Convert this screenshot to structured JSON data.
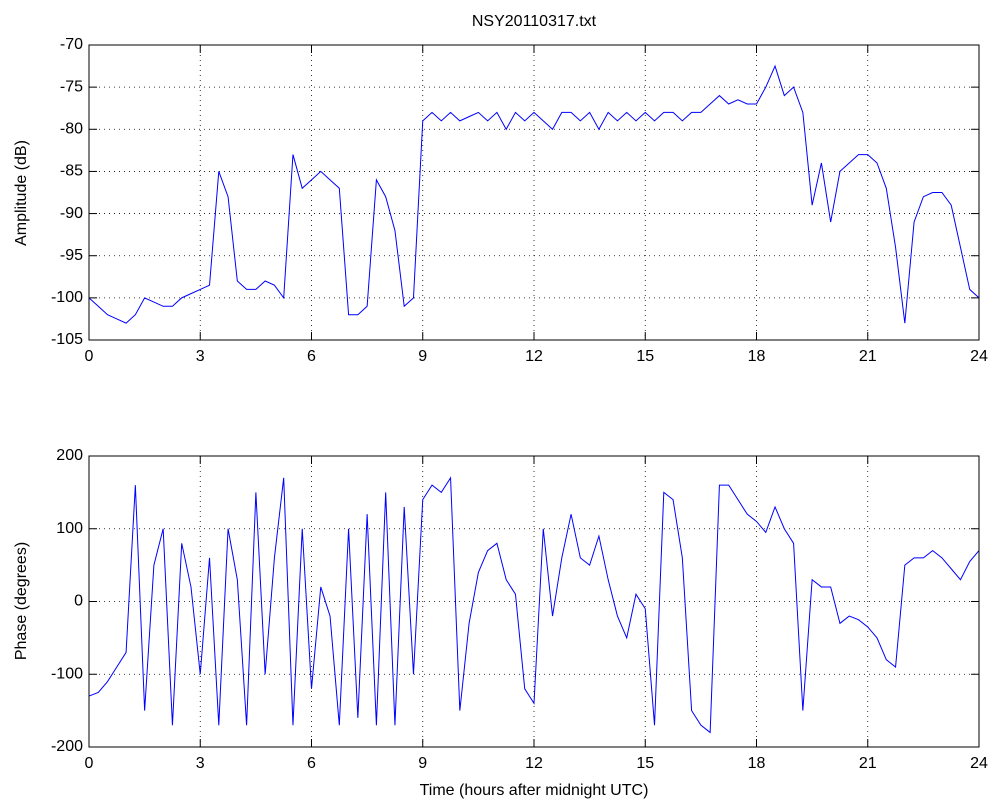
{
  "chart_data": [
    {
      "type": "line",
      "title": "NSY20110317.txt",
      "ylabel": "Amplitude (dB)",
      "x": [
        0,
        0.25,
        0.5,
        0.75,
        1,
        1.25,
        1.5,
        1.75,
        2,
        2.25,
        2.5,
        2.75,
        3,
        3.25,
        3.5,
        3.75,
        4,
        4.25,
        4.5,
        4.75,
        5,
        5.25,
        5.5,
        5.75,
        6,
        6.25,
        6.5,
        6.75,
        7,
        7.25,
        7.5,
        7.75,
        8,
        8.25,
        8.5,
        8.75,
        9,
        9.25,
        9.5,
        9.75,
        10,
        10.25,
        10.5,
        10.75,
        11,
        11.25,
        11.5,
        11.75,
        12,
        12.25,
        12.5,
        12.75,
        13,
        13.25,
        13.5,
        13.75,
        14,
        14.25,
        14.5,
        14.75,
        15,
        15.25,
        15.5,
        15.75,
        16,
        16.25,
        16.5,
        16.75,
        17,
        17.25,
        17.5,
        17.75,
        18,
        18.25,
        18.5,
        18.75,
        19,
        19.25,
        19.5,
        19.75,
        20,
        20.25,
        20.5,
        20.75,
        21,
        21.25,
        21.5,
        21.75,
        22,
        22.25,
        22.5,
        22.75,
        23,
        23.25,
        23.5,
        23.75,
        24
      ],
      "values": [
        -100,
        -101,
        -102,
        -102.5,
        -103,
        -102,
        -100,
        -100.5,
        -101,
        -101,
        -100,
        -99.5,
        -99,
        -98.5,
        -85,
        -88,
        -98,
        -99,
        -99,
        -98,
        -98.5,
        -100,
        -83,
        -87,
        -86,
        -85,
        -86,
        -87,
        -102,
        -102,
        -101,
        -86,
        -88,
        -92,
        -101,
        -100,
        -79,
        -78,
        -79,
        -78,
        -79,
        -78.5,
        -78,
        -79,
        -78,
        -80,
        -78,
        -79,
        -78,
        -79,
        -80,
        -78,
        -78,
        -79,
        -78,
        -80,
        -78,
        -79,
        -78,
        -79,
        -78,
        -79,
        -78,
        -78,
        -79,
        -78,
        -78,
        -77,
        -76,
        -77,
        -76.5,
        -77,
        -77,
        -75,
        -72.5,
        -76,
        -75,
        -78,
        -89,
        -84,
        -91,
        -85,
        -84,
        -83,
        -83,
        -84,
        -87,
        -94,
        -103,
        -91,
        -88,
        -87.5,
        -87.5,
        -89,
        -94,
        -99,
        -100
      ],
      "color": "#0000ff",
      "xlim": [
        0,
        24
      ],
      "xticks": [
        0,
        3,
        6,
        9,
        12,
        15,
        18,
        21,
        24
      ],
      "ylim": [
        -105,
        -70
      ],
      "yticks": [
        -105,
        -100,
        -95,
        -90,
        -85,
        -80,
        -75,
        -70
      ],
      "grid": true
    },
    {
      "type": "line",
      "xlabel": "Time (hours after midnight UTC)",
      "ylabel": "Phase (degrees)",
      "x": [
        0,
        0.25,
        0.5,
        0.75,
        1,
        1.25,
        1.5,
        1.75,
        2,
        2.25,
        2.5,
        2.75,
        3,
        3.25,
        3.5,
        3.75,
        4,
        4.25,
        4.5,
        4.75,
        5,
        5.25,
        5.5,
        5.75,
        6,
        6.25,
        6.5,
        6.75,
        7,
        7.25,
        7.5,
        7.75,
        8,
        8.25,
        8.5,
        8.75,
        9,
        9.25,
        9.5,
        9.75,
        10,
        10.25,
        10.5,
        10.75,
        11,
        11.25,
        11.5,
        11.75,
        12,
        12.25,
        12.5,
        12.75,
        13,
        13.25,
        13.5,
        13.75,
        14,
        14.25,
        14.5,
        14.75,
        15,
        15.25,
        15.5,
        15.75,
        16,
        16.25,
        16.5,
        16.75,
        17,
        17.25,
        17.5,
        17.75,
        18,
        18.25,
        18.5,
        18.75,
        19,
        19.25,
        19.5,
        19.75,
        20,
        20.25,
        20.5,
        20.75,
        21,
        21.25,
        21.5,
        21.75,
        22,
        22.25,
        22.5,
        22.75,
        23,
        23.25,
        23.5,
        23.75,
        24
      ],
      "values": [
        -130,
        -125,
        -110,
        -90,
        -70,
        160,
        -150,
        50,
        100,
        -170,
        80,
        20,
        -100,
        60,
        -170,
        100,
        30,
        -170,
        150,
        -100,
        60,
        170,
        -170,
        100,
        -120,
        20,
        -20,
        -170,
        100,
        -160,
        120,
        -170,
        150,
        -170,
        130,
        -100,
        140,
        160,
        150,
        170,
        -150,
        -30,
        40,
        70,
        80,
        30,
        10,
        -120,
        -140,
        100,
        -20,
        60,
        120,
        60,
        50,
        90,
        30,
        -20,
        -50,
        10,
        -10,
        -170,
        150,
        140,
        60,
        -150,
        -170,
        -180,
        160,
        160,
        140,
        120,
        110,
        95,
        130,
        100,
        80,
        -150,
        30,
        20,
        20,
        -30,
        -20,
        -25,
        -35,
        -50,
        -80,
        -90,
        50,
        60,
        60,
        70,
        60,
        45,
        30,
        55,
        70
      ],
      "color": "#0000ff",
      "xlim": [
        0,
        24
      ],
      "xticks": [
        0,
        3,
        6,
        9,
        12,
        15,
        18,
        21,
        24
      ],
      "ylim": [
        -200,
        200
      ],
      "yticks": [
        -200,
        -100,
        0,
        100,
        200
      ],
      "grid": true
    }
  ]
}
